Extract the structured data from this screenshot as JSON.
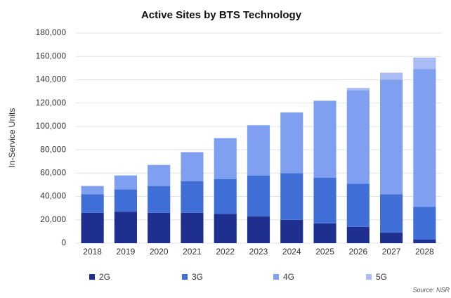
{
  "chart_data": {
    "type": "stacked-bar",
    "title": "Active Sites by BTS Technology",
    "y_label": "In-Service Units",
    "source": "Source: NSR",
    "categories": [
      "2018",
      "2019",
      "2020",
      "2021",
      "2022",
      "2023",
      "2024",
      "2025",
      "2026",
      "2027",
      "2028"
    ],
    "series": [
      {
        "name": "2G",
        "color": "#1f2f8f",
        "values": [
          26000,
          27000,
          26000,
          26000,
          25000,
          23000,
          20000,
          17000,
          14000,
          9000,
          3000
        ]
      },
      {
        "name": "3G",
        "color": "#3f6fd6",
        "values": [
          16000,
          19000,
          23000,
          27000,
          30000,
          35000,
          40000,
          39000,
          37000,
          33000,
          28000
        ]
      },
      {
        "name": "4G",
        "color": "#7f9ff0",
        "values": [
          7000,
          12000,
          18000,
          25000,
          35000,
          43000,
          52000,
          66000,
          80000,
          98000,
          118000
        ]
      },
      {
        "name": "5G",
        "color": "#a9bcf5",
        "values": [
          0,
          0,
          0,
          0,
          0,
          0,
          0,
          0,
          2000,
          6000,
          10000
        ]
      }
    ],
    "ylim": [
      0,
      180000
    ],
    "yticks": [
      0,
      {
        "value": 20000,
        "label": "20,000"
      },
      {
        "value": 40000,
        "label": "40,000"
      },
      {
        "value": 60000,
        "label": "60,000"
      },
      {
        "value": 80000,
        "label": "80,000"
      },
      {
        "value": 100000,
        "label": "100,000"
      },
      {
        "value": 120000,
        "label": "120,000"
      },
      {
        "value": 140000,
        "label": "140,000"
      },
      {
        "value": 160000,
        "label": "160,000"
      },
      {
        "value": 180000,
        "label": "180,000"
      }
    ],
    "grid": true
  }
}
